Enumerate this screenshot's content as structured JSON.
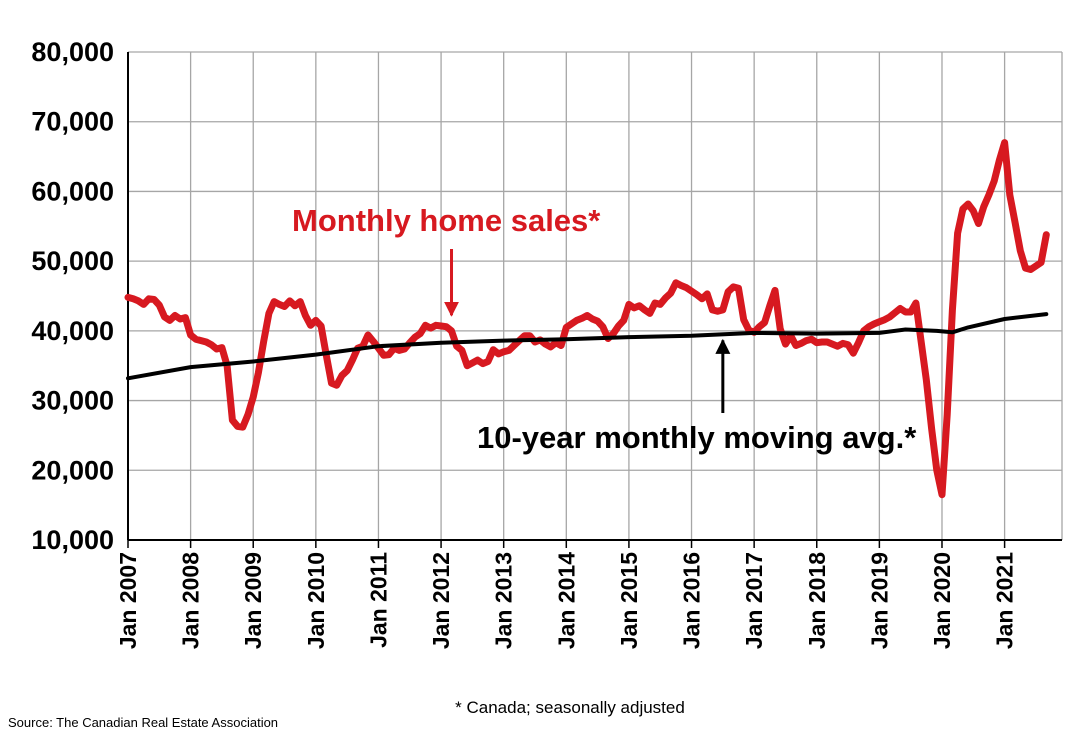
{
  "chart_data": {
    "type": "line",
    "title": "",
    "xlabel": "",
    "ylabel": "",
    "ylim": [
      10000,
      80000
    ],
    "yticks": [
      10000,
      20000,
      30000,
      40000,
      50000,
      60000,
      70000,
      80000
    ],
    "ytick_labels": [
      "10,000",
      "20,000",
      "30,000",
      "40,000",
      "50,000",
      "60,000",
      "70,000",
      "80,000"
    ],
    "xlim": [
      "2007-01",
      "2021-12"
    ],
    "xtick_labels": [
      "Jan 2007",
      "Jan 2008",
      "Jan 2009",
      "Jan 2010",
      "Jan 2011",
      "Jan 2012",
      "Jan 2013",
      "Jan 2014",
      "Jan 2015",
      "Jan 2016",
      "Jan 2017",
      "Jan 2018",
      "Jan 2019",
      "Jan 2020",
      "Jan 2021"
    ],
    "grid": true,
    "colors": {
      "monthly": "#d71920",
      "moving_avg": "#000000",
      "grid": "#a6a6a6"
    },
    "series": [
      {
        "name": "Monthly home sales*",
        "points": [
          [
            "2007-01",
            44800
          ],
          [
            "2007-02",
            44600
          ],
          [
            "2007-03",
            44300
          ],
          [
            "2007-04",
            43800
          ],
          [
            "2007-05",
            44600
          ],
          [
            "2007-06",
            44500
          ],
          [
            "2007-07",
            43700
          ],
          [
            "2007-08",
            42000
          ],
          [
            "2007-09",
            41500
          ],
          [
            "2007-10",
            42200
          ],
          [
            "2007-11",
            41700
          ],
          [
            "2007-12",
            41900
          ],
          [
            "2008-01",
            39400
          ],
          [
            "2008-02",
            38800
          ],
          [
            "2008-03",
            38600
          ],
          [
            "2008-04",
            38400
          ],
          [
            "2008-05",
            38000
          ],
          [
            "2008-06",
            37400
          ],
          [
            "2008-07",
            37600
          ],
          [
            "2008-08",
            35000
          ],
          [
            "2008-09",
            27200
          ],
          [
            "2008-10",
            26300
          ],
          [
            "2008-11",
            26200
          ],
          [
            "2008-12",
            28000
          ],
          [
            "2009-01",
            30500
          ],
          [
            "2009-02",
            34000
          ],
          [
            "2009-03",
            38500
          ],
          [
            "2009-04",
            42500
          ],
          [
            "2009-05",
            44200
          ],
          [
            "2009-06",
            43800
          ],
          [
            "2009-07",
            43500
          ],
          [
            "2009-08",
            44300
          ],
          [
            "2009-09",
            43600
          ],
          [
            "2009-10",
            44200
          ],
          [
            "2009-11",
            42200
          ],
          [
            "2009-12",
            40800
          ],
          [
            "2010-01",
            41500
          ],
          [
            "2010-02",
            40700
          ],
          [
            "2010-03",
            36500
          ],
          [
            "2010-04",
            32500
          ],
          [
            "2010-05",
            32200
          ],
          [
            "2010-06",
            33600
          ],
          [
            "2010-07",
            34300
          ],
          [
            "2010-08",
            35800
          ],
          [
            "2010-09",
            37500
          ],
          [
            "2010-10",
            37800
          ],
          [
            "2010-11",
            39400
          ],
          [
            "2010-12",
            38500
          ],
          [
            "2011-01",
            37500
          ],
          [
            "2011-02",
            36500
          ],
          [
            "2011-03",
            36600
          ],
          [
            "2011-04",
            37500
          ],
          [
            "2011-05",
            37200
          ],
          [
            "2011-06",
            37400
          ],
          [
            "2011-07",
            38300
          ],
          [
            "2011-08",
            39100
          ],
          [
            "2011-09",
            39600
          ],
          [
            "2011-10",
            40800
          ],
          [
            "2011-11",
            40400
          ],
          [
            "2011-12",
            40800
          ],
          [
            "2012-01",
            40700
          ],
          [
            "2012-02",
            40600
          ],
          [
            "2012-03",
            40000
          ],
          [
            "2012-04",
            37800
          ],
          [
            "2012-05",
            37200
          ],
          [
            "2012-06",
            35000
          ],
          [
            "2012-07",
            35400
          ],
          [
            "2012-08",
            35800
          ],
          [
            "2012-09",
            35300
          ],
          [
            "2012-10",
            35600
          ],
          [
            "2012-11",
            37300
          ],
          [
            "2012-12",
            36700
          ],
          [
            "2013-01",
            37000
          ],
          [
            "2013-02",
            37200
          ],
          [
            "2013-03",
            37900
          ],
          [
            "2013-04",
            38600
          ],
          [
            "2013-05",
            39300
          ],
          [
            "2013-06",
            39300
          ],
          [
            "2013-07",
            38400
          ],
          [
            "2013-08",
            38700
          ],
          [
            "2013-09",
            38100
          ],
          [
            "2013-10",
            37700
          ],
          [
            "2013-11",
            38300
          ],
          [
            "2013-12",
            37900
          ],
          [
            "2014-01",
            40500
          ],
          [
            "2014-02",
            41000
          ],
          [
            "2014-03",
            41500
          ],
          [
            "2014-04",
            41800
          ],
          [
            "2014-05",
            42200
          ],
          [
            "2014-06",
            41700
          ],
          [
            "2014-07",
            41400
          ],
          [
            "2014-08",
            40600
          ],
          [
            "2014-09",
            38900
          ],
          [
            "2014-10",
            39600
          ],
          [
            "2014-11",
            40700
          ],
          [
            "2014-12",
            41500
          ],
          [
            "2015-01",
            43800
          ],
          [
            "2015-02",
            43300
          ],
          [
            "2015-03",
            43600
          ],
          [
            "2015-04",
            43000
          ],
          [
            "2015-05",
            42500
          ],
          [
            "2015-06",
            44000
          ],
          [
            "2015-07",
            43800
          ],
          [
            "2015-08",
            44700
          ],
          [
            "2015-09",
            45400
          ],
          [
            "2015-10",
            46900
          ],
          [
            "2015-11",
            46500
          ],
          [
            "2015-12",
            46200
          ],
          [
            "2016-01",
            45700
          ],
          [
            "2016-02",
            45200
          ],
          [
            "2016-03",
            44600
          ],
          [
            "2016-04",
            45300
          ],
          [
            "2016-05",
            43000
          ],
          [
            "2016-06",
            42800
          ],
          [
            "2016-07",
            43000
          ],
          [
            "2016-08",
            45600
          ],
          [
            "2016-09",
            46300
          ],
          [
            "2016-10",
            46100
          ],
          [
            "2016-11",
            41600
          ],
          [
            "2016-12",
            40100
          ],
          [
            "2017-01",
            39800
          ],
          [
            "2017-02",
            40600
          ],
          [
            "2017-03",
            41200
          ],
          [
            "2017-04",
            43600
          ],
          [
            "2017-05",
            45800
          ],
          [
            "2017-06",
            40300
          ],
          [
            "2017-07",
            38100
          ],
          [
            "2017-08",
            39300
          ],
          [
            "2017-09",
            37900
          ],
          [
            "2017-10",
            38200
          ],
          [
            "2017-11",
            38600
          ],
          [
            "2017-12",
            38800
          ],
          [
            "2018-01",
            38300
          ],
          [
            "2018-02",
            38400
          ],
          [
            "2018-03",
            38400
          ],
          [
            "2018-04",
            38100
          ],
          [
            "2018-05",
            37800
          ],
          [
            "2018-06",
            38200
          ],
          [
            "2018-07",
            38000
          ],
          [
            "2018-08",
            36800
          ],
          [
            "2018-09",
            38300
          ],
          [
            "2018-10",
            40000
          ],
          [
            "2018-11",
            40600
          ],
          [
            "2018-12",
            41000
          ],
          [
            "2019-01",
            41300
          ],
          [
            "2019-02",
            41600
          ],
          [
            "2019-03",
            42000
          ],
          [
            "2019-04",
            42600
          ],
          [
            "2019-05",
            43200
          ],
          [
            "2019-06",
            42700
          ],
          [
            "2019-07",
            42700
          ],
          [
            "2019-08",
            44000
          ],
          [
            "2019-09",
            38500
          ],
          [
            "2019-10",
            33000
          ],
          [
            "2019-11",
            26000
          ],
          [
            "2019-12",
            20000
          ],
          [
            "2020-01",
            16500
          ],
          [
            "2020-02",
            28000
          ],
          [
            "2020-03",
            43000
          ],
          [
            "2020-04",
            54000
          ],
          [
            "2020-05",
            57500
          ],
          [
            "2020-06",
            58200
          ],
          [
            "2020-07",
            57200
          ],
          [
            "2020-08",
            55400
          ],
          [
            "2020-09",
            57800
          ],
          [
            "2020-10",
            59500
          ],
          [
            "2020-11",
            61500
          ],
          [
            "2020-12",
            64500
          ],
          [
            "2021-01",
            67000
          ],
          [
            "2021-02",
            59500
          ],
          [
            "2021-03",
            55600
          ],
          [
            "2021-04",
            51500
          ],
          [
            "2021-05",
            49000
          ],
          [
            "2021-06",
            48800
          ],
          [
            "2021-07",
            49300
          ],
          [
            "2021-08",
            49800
          ],
          [
            "2021-09",
            53800
          ]
        ]
      },
      {
        "name": "10-year monthly moving avg.*",
        "points": [
          [
            "2007-01",
            33200
          ],
          [
            "2008-01",
            34800
          ],
          [
            "2009-01",
            35600
          ],
          [
            "2010-01",
            36600
          ],
          [
            "2011-01",
            37800
          ],
          [
            "2012-01",
            38300
          ],
          [
            "2013-01",
            38600
          ],
          [
            "2014-01",
            38800
          ],
          [
            "2015-01",
            39100
          ],
          [
            "2016-01",
            39300
          ],
          [
            "2017-01",
            39700
          ],
          [
            "2018-01",
            39600
          ],
          [
            "2019-01",
            39700
          ],
          [
            "2019-06",
            40200
          ],
          [
            "2019-12",
            40000
          ],
          [
            "2020-03",
            39800
          ],
          [
            "2020-06",
            40500
          ],
          [
            "2021-01",
            41700
          ],
          [
            "2021-09",
            42400
          ]
        ]
      }
    ],
    "annotations": {
      "monthly_label": "Monthly home sales*",
      "monthly_arrow_target": [
        "2012-03",
        40800
      ],
      "avg_label": "10-year monthly moving avg.*",
      "avg_arrow_target": [
        "2016-07",
        39500
      ]
    }
  },
  "footnote": "* Canada; seasonally adjusted",
  "source": "Source: The Canadian Real Estate Association"
}
